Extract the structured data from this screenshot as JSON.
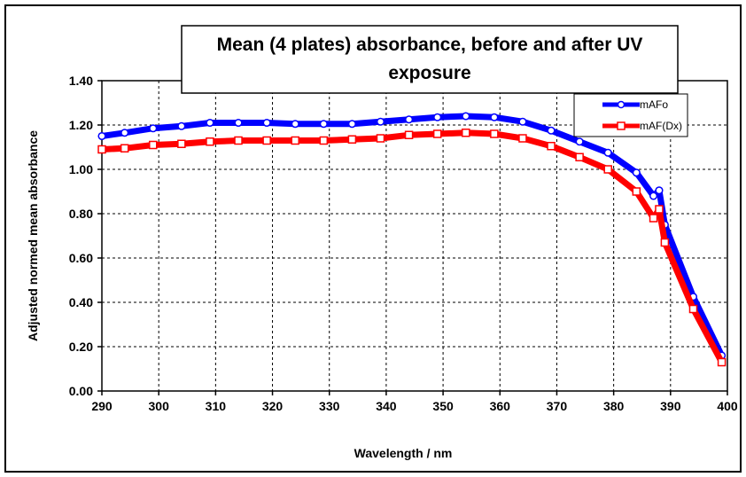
{
  "chart_data": {
    "type": "line",
    "title_lines": [
      "Mean (4 plates) absorbance, before and after UV",
      "exposure"
    ],
    "xlabel": "Wavelength / nm",
    "ylabel": "Adjusted normed mean absorbance",
    "xlim": [
      290,
      400
    ],
    "ylim": [
      0,
      1.4
    ],
    "x_ticks": [
      "290",
      "300",
      "310",
      "320",
      "330",
      "340",
      "350",
      "360",
      "370",
      "380",
      "390",
      "400"
    ],
    "y_ticks": [
      "0.00",
      "0.20",
      "0.40",
      "0.60",
      "0.80",
      "1.00",
      "1.20",
      "1.40"
    ],
    "grid": true,
    "legend_position": "top-right",
    "series": [
      {
        "name": "mAFo",
        "color": "#0000ff",
        "marker": "circle",
        "x": [
          290,
          294,
          299,
          304,
          309,
          314,
          319,
          324,
          329,
          334,
          339,
          344,
          349,
          354,
          359,
          364,
          369,
          374,
          379,
          384,
          387,
          388,
          389,
          394,
          399
        ],
        "y": [
          1.15,
          1.165,
          1.185,
          1.195,
          1.21,
          1.21,
          1.21,
          1.205,
          1.205,
          1.205,
          1.215,
          1.225,
          1.235,
          1.24,
          1.235,
          1.215,
          1.175,
          1.125,
          1.075,
          0.985,
          0.88,
          0.905,
          0.75,
          0.425,
          0.16
        ]
      },
      {
        "name": "mAF(Dx)",
        "color": "#ff0000",
        "marker": "square",
        "x": [
          290,
          294,
          299,
          304,
          309,
          314,
          319,
          324,
          329,
          334,
          339,
          344,
          349,
          354,
          359,
          364,
          369,
          374,
          379,
          384,
          387,
          388,
          389,
          394,
          399
        ],
        "y": [
          1.09,
          1.095,
          1.11,
          1.115,
          1.125,
          1.13,
          1.13,
          1.13,
          1.13,
          1.135,
          1.14,
          1.155,
          1.16,
          1.165,
          1.16,
          1.14,
          1.105,
          1.055,
          1.0,
          0.9,
          0.78,
          0.82,
          0.67,
          0.37,
          0.13
        ]
      }
    ]
  }
}
